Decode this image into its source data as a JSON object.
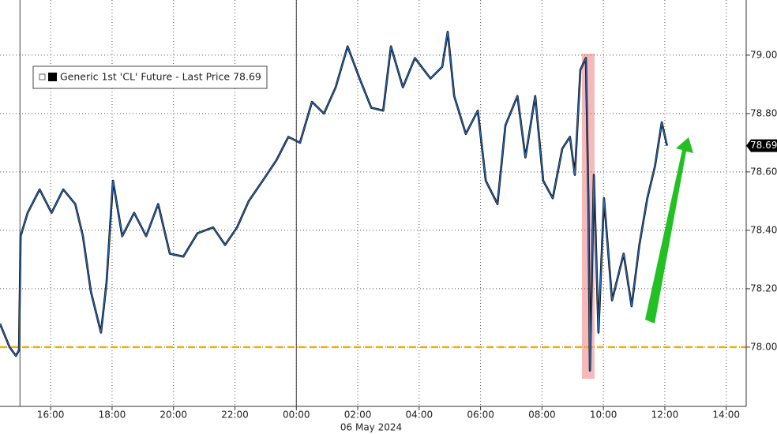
{
  "chart_data": {
    "type": "line",
    "subtitle": "06 May 2024",
    "x": [
      14.35,
      14.66,
      14.87,
      14.97,
      15.02,
      15.25,
      15.64,
      16.03,
      16.41,
      16.8,
      17.05,
      17.31,
      17.64,
      17.82,
      18.03,
      18.33,
      18.72,
      19.11,
      19.5,
      19.88,
      20.32,
      20.78,
      21.29,
      21.68,
      22.07,
      22.45,
      22.97,
      23.35,
      23.74,
      24.12,
      24.51,
      24.9,
      25.28,
      25.67,
      26.06,
      26.44,
      26.83,
      27.08,
      27.47,
      27.86,
      28.37,
      28.75,
      28.93,
      29.14,
      29.52,
      29.91,
      30.17,
      30.55,
      30.81,
      31.2,
      31.46,
      31.78,
      32.04,
      32.35,
      32.66,
      32.91,
      33.07,
      33.25,
      33.43,
      33.51,
      33.56,
      33.69,
      33.84,
      34.02,
      34.28,
      34.66,
      34.92,
      35.17,
      35.43,
      35.68,
      35.9,
      36.07
    ],
    "series": [
      {
        "name": "Generic 1st 'CL' Future - Last Price 78.69",
        "color": "#2a6ab8",
        "values": [
          78.08,
          78.0,
          77.97,
          77.99,
          78.38,
          78.46,
          78.54,
          78.46,
          78.54,
          78.49,
          78.38,
          78.19,
          78.05,
          78.22,
          78.57,
          78.38,
          78.46,
          78.38,
          78.49,
          78.32,
          78.31,
          78.39,
          78.41,
          78.35,
          78.41,
          78.5,
          78.58,
          78.64,
          78.72,
          78.7,
          78.84,
          78.8,
          78.89,
          79.03,
          78.92,
          78.82,
          78.81,
          79.03,
          78.89,
          78.99,
          78.92,
          78.96,
          79.08,
          78.86,
          78.73,
          78.81,
          78.57,
          78.49,
          78.76,
          78.86,
          78.65,
          78.86,
          78.57,
          78.51,
          78.68,
          78.72,
          78.59,
          78.95,
          78.99,
          78.51,
          77.92,
          78.59,
          78.05,
          78.51,
          78.16,
          78.32,
          78.14,
          78.35,
          78.51,
          78.62,
          78.77,
          78.69
        ]
      }
    ],
    "xlim": [
      14.35,
      38.65
    ],
    "xticks": [
      {
        "value": 16,
        "label": "16:00"
      },
      {
        "value": 18,
        "label": "18:00"
      },
      {
        "value": 20,
        "label": "20:00"
      },
      {
        "value": 22,
        "label": "22:00"
      },
      {
        "value": 24,
        "label": "00:00"
      },
      {
        "value": 26,
        "label": "02:00"
      },
      {
        "value": 28,
        "label": "04:00"
      },
      {
        "value": 30,
        "label": "06:00"
      },
      {
        "value": 32,
        "label": "08:00"
      },
      {
        "value": 34,
        "label": "10:00"
      },
      {
        "value": 36,
        "label": "12:00"
      },
      {
        "value": 38,
        "label": "14:00"
      }
    ],
    "ylim": [
      77.797,
      79.189
    ],
    "yticks": [
      {
        "value": 78,
        "label": "78.00"
      },
      {
        "value": 78.2,
        "label": "78.20"
      },
      {
        "value": 78.4,
        "label": "78.40"
      },
      {
        "value": 78.6,
        "label": "78.60"
      },
      {
        "value": 78.8,
        "label": "78.80"
      },
      {
        "value": 79,
        "label": "79.00"
      }
    ],
    "last_price": {
      "value": 78.69,
      "label": "78.69"
    },
    "reference_line": {
      "value": 78,
      "color": "#f0b000"
    },
    "session_lines": [
      15,
      24
    ],
    "highlight": {
      "x": [
        33.3,
        33.71
      ],
      "color": "#f4a8a8"
    },
    "grid": true
  }
}
